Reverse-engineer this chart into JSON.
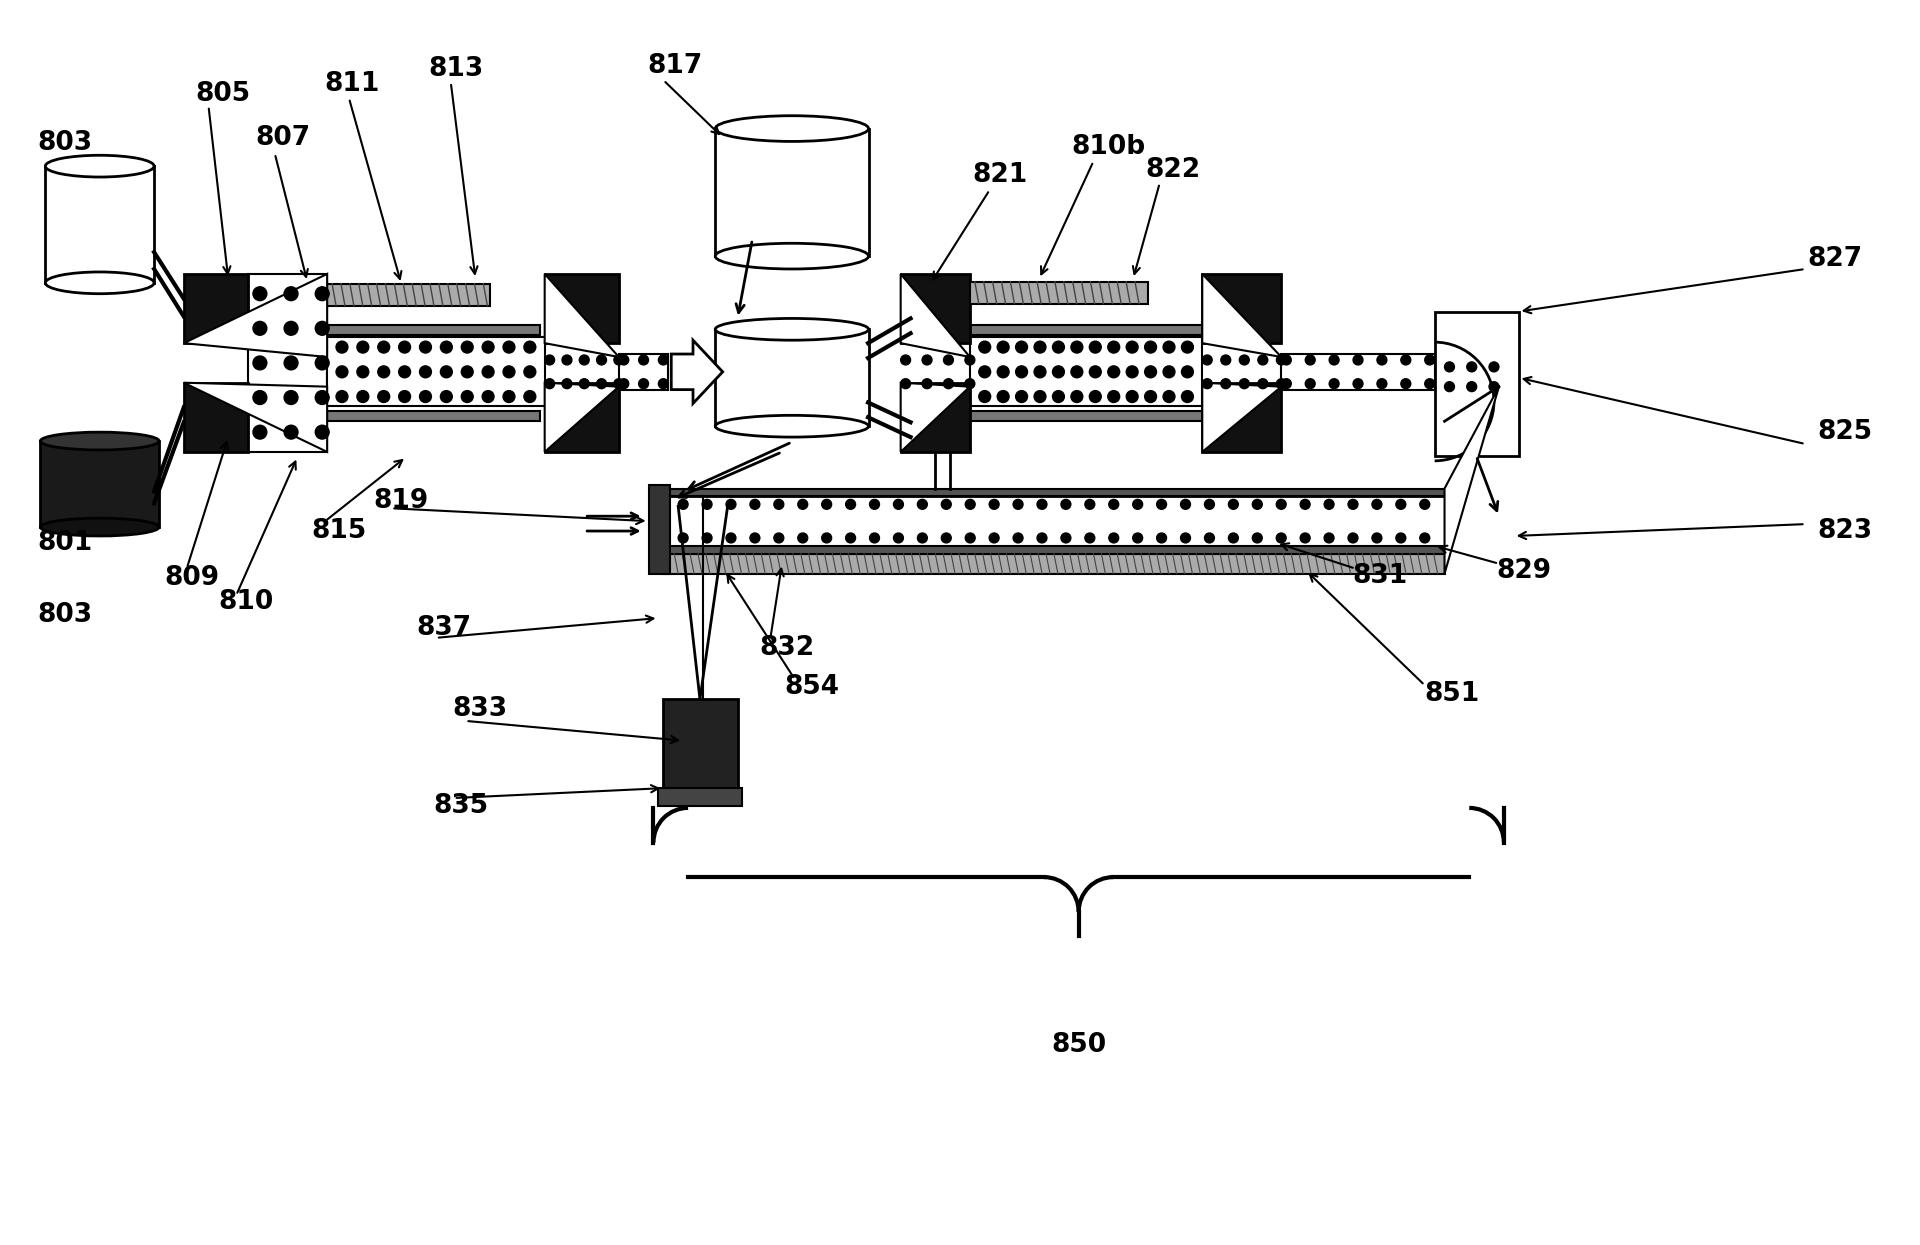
{
  "bg_color": "#ffffff",
  "fig_width": 19.2,
  "fig_height": 12.45,
  "black": "#000000",
  "dark": "#111111",
  "gray_stripe": "#999999",
  "light_gray": "#cccccc"
}
